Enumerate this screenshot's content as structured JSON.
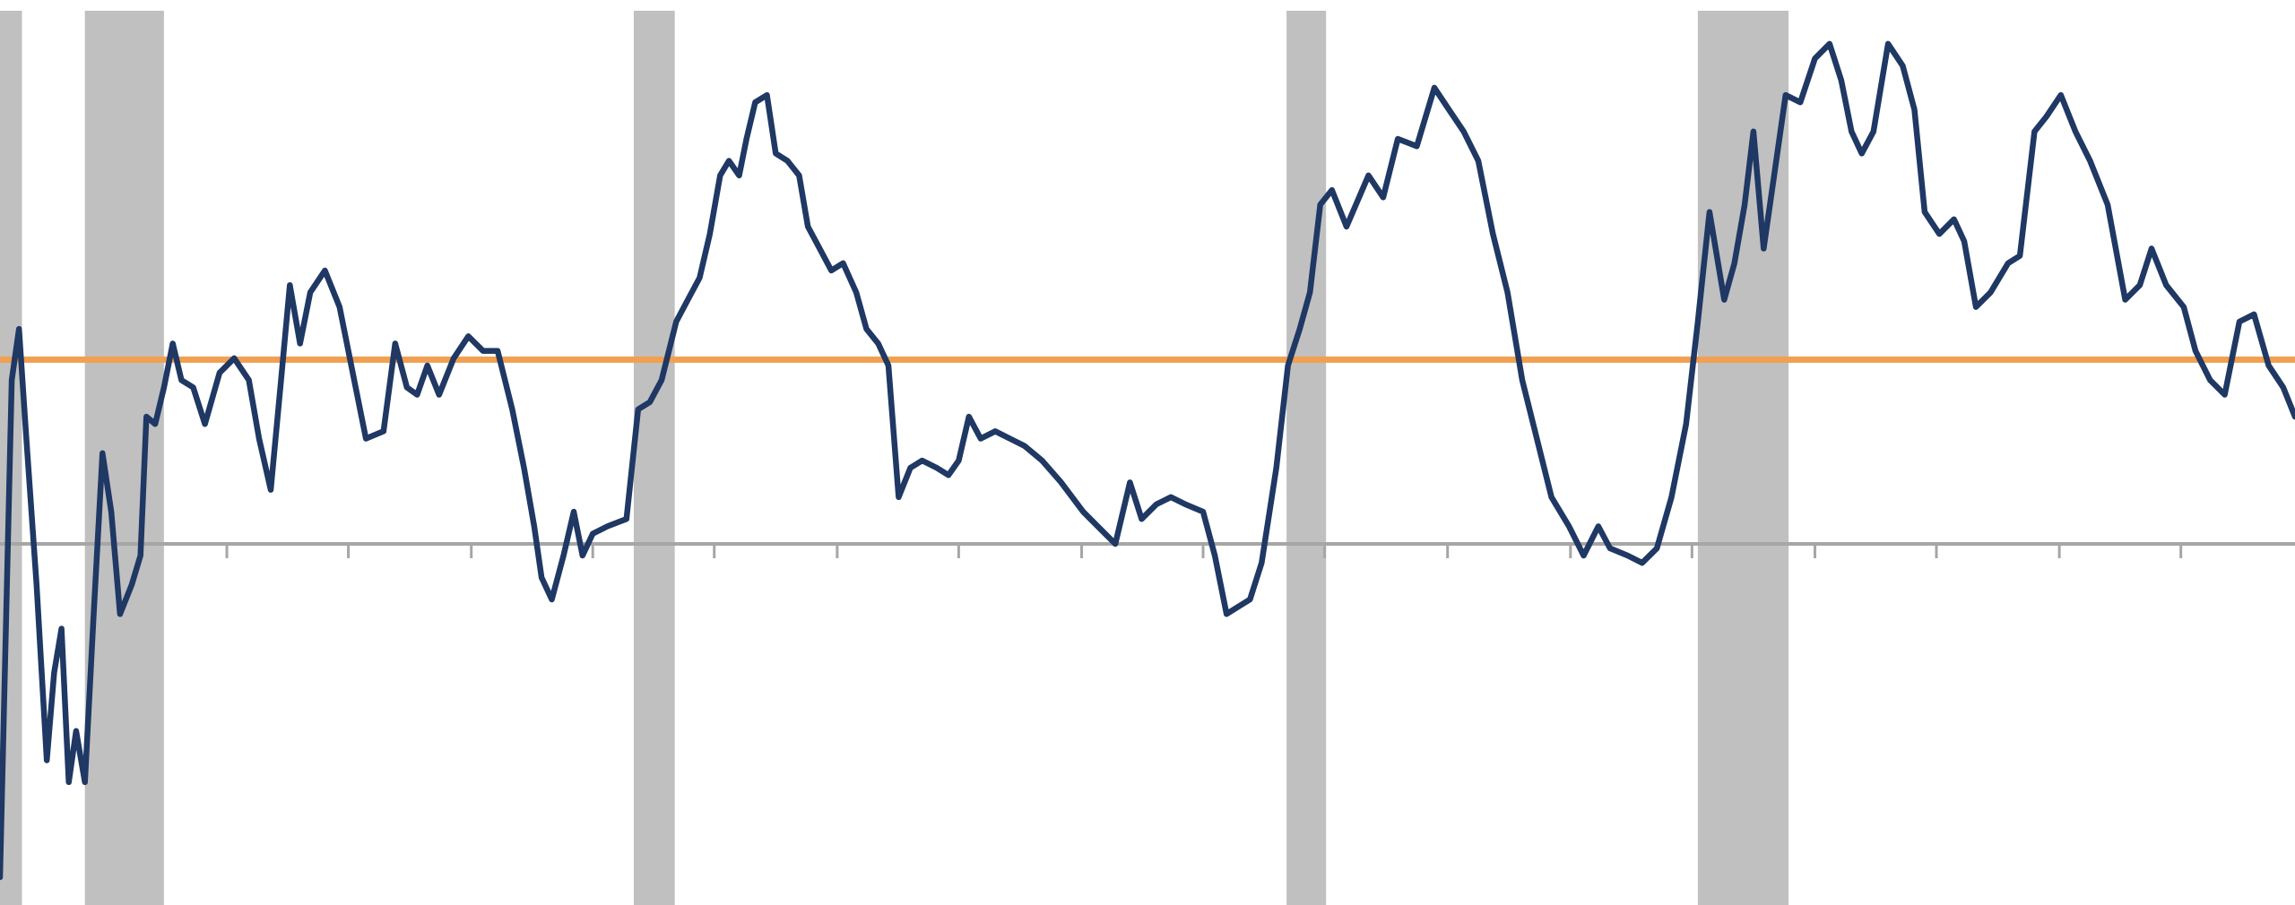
{
  "chart_data": {
    "type": "line",
    "xlim": [
      0,
      1568
    ],
    "ylim": [
      -247,
      372
    ],
    "xticks": [
      155,
      238,
      322,
      405,
      488,
      572,
      655,
      739,
      822,
      905,
      989,
      1073,
      1156,
      1240,
      1323,
      1407,
      1490
    ],
    "zero_line_color": "#a6a6a6",
    "shaded_ranges": [
      [
        0,
        15
      ],
      [
        58,
        112
      ],
      [
        433,
        461
      ],
      [
        879,
        906
      ],
      [
        1160,
        1222
      ]
    ],
    "shade_color": "#c0c0c0",
    "reference_line": {
      "value": 126,
      "color": "#f0a050"
    },
    "series": [
      {
        "color": "#1f3864",
        "x": [
          0,
          8,
          13,
          18,
          25,
          32,
          37,
          42,
          47,
          52,
          58,
          64,
          70,
          76,
          82,
          90,
          96,
          100,
          106,
          112,
          118,
          124,
          132,
          140,
          150,
          160,
          170,
          177,
          185,
          192,
          198,
          205,
          212,
          222,
          232,
          242,
          250,
          262,
          270,
          278,
          285,
          292,
          300,
          310,
          320,
          330,
          340,
          350,
          358,
          365,
          370,
          377,
          385,
          392,
          398,
          405,
          415,
          428,
          436,
          444,
          452,
          462,
          470,
          478,
          485,
          492,
          498,
          505,
          510,
          516,
          524,
          530,
          538,
          546,
          552,
          560,
          568,
          576,
          585,
          592,
          600,
          607,
          614,
          622,
          630,
          640,
          648,
          655,
          662,
          670,
          680,
          690,
          700,
          712,
          725,
          740,
          750,
          762,
          772,
          780,
          790,
          800,
          810,
          822,
          830,
          838,
          846,
          854,
          862,
          872,
          880,
          888,
          895,
          902,
          910,
          920,
          935,
          945,
          955,
          968,
          980,
          990,
          1000,
          1010,
          1020,
          1030,
          1040,
          1050,
          1060,
          1072,
          1082,
          1092,
          1100,
          1112,
          1122,
          1132,
          1142,
          1152,
          1160,
          1168,
          1178,
          1185,
          1192,
          1198,
          1205,
          1210,
          1220,
          1230,
          1240,
          1250,
          1258,
          1265,
          1272,
          1280,
          1290,
          1300,
          1308,
          1315,
          1325,
          1335,
          1342,
          1350,
          1360,
          1372,
          1380,
          1390,
          1398,
          1408,
          1418,
          1428,
          1440,
          1452,
          1462,
          1470,
          1480,
          1492,
          1500,
          1510,
          1520,
          1530,
          1540,
          1550,
          1560,
          1568
        ],
        "values": [
          -228,
          112,
          147,
          72,
          -28,
          -148,
          -88,
          -58,
          -163,
          -128,
          -163,
          -48,
          62,
          22,
          -48,
          -28,
          -8,
          87,
          82,
          107,
          137,
          112,
          107,
          82,
          117,
          127,
          112,
          72,
          37,
          112,
          177,
          137,
          172,
          187,
          162,
          112,
          72,
          77,
          137,
          107,
          102,
          122,
          102,
          127,
          142,
          132,
          132,
          92,
          52,
          12,
          -23,
          -38,
          -8,
          22,
          -8,
          7,
          12,
          17,
          92,
          97,
          112,
          152,
          167,
          182,
          212,
          252,
          262,
          252,
          277,
          302,
          307,
          267,
          262,
          252,
          217,
          202,
          187,
          192,
          172,
          147,
          137,
          122,
          32,
          52,
          57,
          52,
          47,
          57,
          87,
          72,
          77,
          72,
          67,
          57,
          42,
          22,
          12,
          0,
          42,
          17,
          27,
          32,
          27,
          22,
          -8,
          -48,
          -43,
          -38,
          -13,
          52,
          122,
          147,
          172,
          232,
          242,
          217,
          252,
          237,
          277,
          272,
          312,
          297,
          282,
          262,
          212,
          172,
          112,
          72,
          32,
          12,
          -8,
          12,
          -3,
          -8,
          -13,
          -3,
          32,
          82,
          152,
          227,
          167,
          192,
          232,
          282,
          202,
          237,
          307,
          302,
          332,
          342,
          317,
          282,
          267,
          282,
          342,
          327,
          297,
          227,
          212,
          222,
          207,
          162,
          172,
          192,
          197,
          282,
          292,
          307,
          282,
          262,
          232,
          167,
          177,
          202,
          177,
          162,
          132,
          112,
          102,
          152,
          157,
          122,
          107,
          87
        ]
      }
    ]
  }
}
